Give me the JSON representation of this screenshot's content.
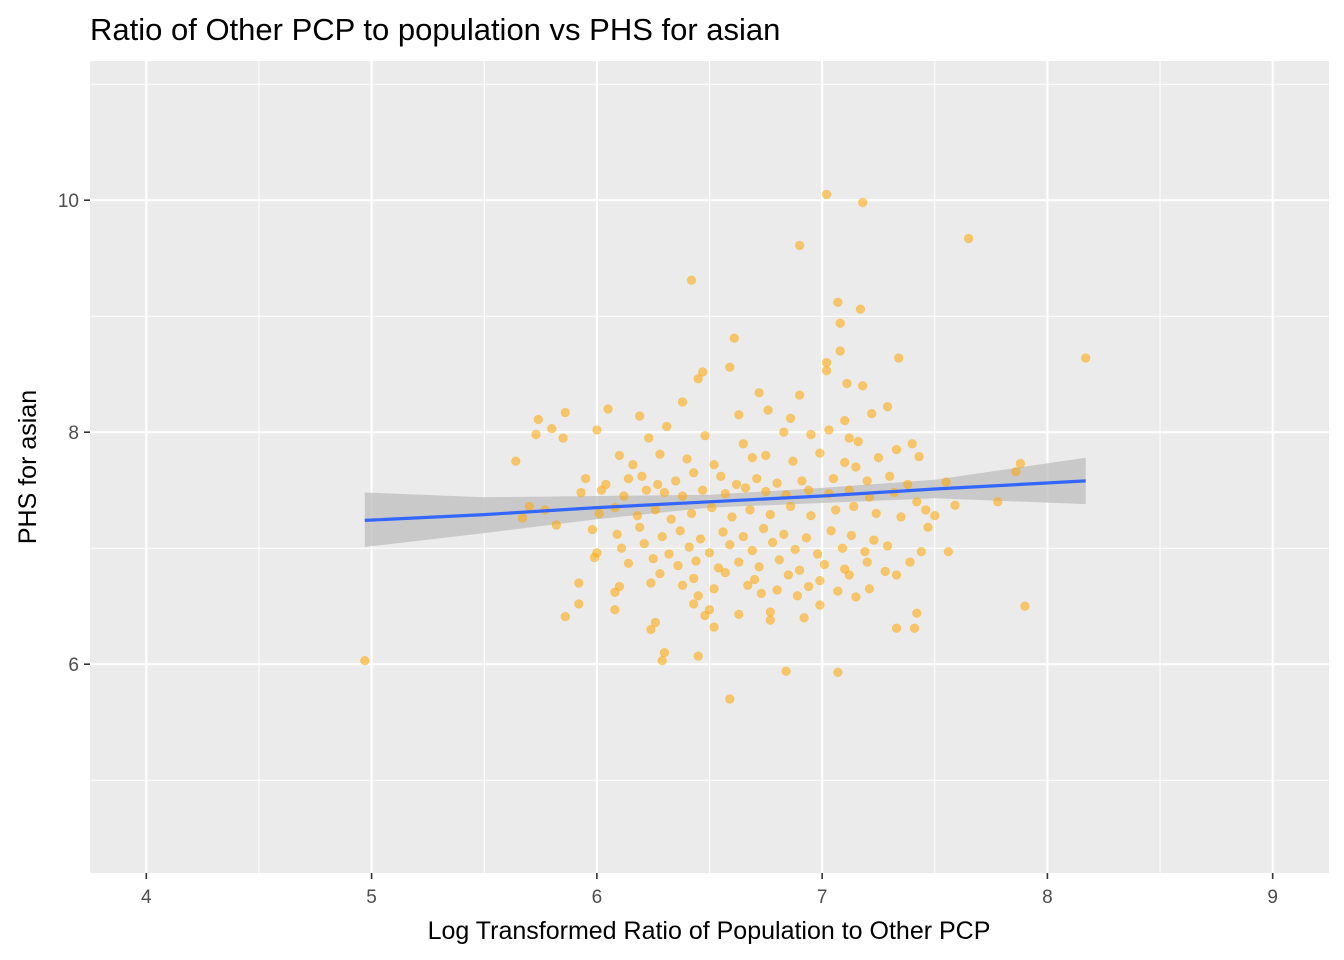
{
  "chart_data": {
    "type": "scatter",
    "title": "Ratio of Other PCP to population vs PHS for asian",
    "xlabel": "Log Transformed Ratio of Population to Other PCP",
    "ylabel": "PHS for asian",
    "xlim": [
      3.75,
      9.25
    ],
    "ylim": [
      4.2,
      11.2
    ],
    "x_ticks": [
      4,
      5,
      6,
      7,
      8,
      9
    ],
    "y_ticks": [
      6,
      8,
      10
    ],
    "grid": true,
    "point_color": "#FFA500",
    "line_color": "#3366FF",
    "band_color": "#BEBEBE",
    "panel_background": "#EBEBEB",
    "regression": {
      "x": [
        4.97,
        5.5,
        6.0,
        6.5,
        7.0,
        7.5,
        8.17
      ],
      "fit": [
        7.24,
        7.29,
        7.35,
        7.4,
        7.45,
        7.51,
        7.58
      ],
      "lower": [
        7.01,
        7.13,
        7.25,
        7.35,
        7.39,
        7.43,
        7.38
      ],
      "upper": [
        7.48,
        7.44,
        7.45,
        7.46,
        7.52,
        7.59,
        7.78
      ]
    },
    "points": [
      [
        4.97,
        6.03
      ],
      [
        7.02,
        10.05
      ],
      [
        7.18,
        9.98
      ],
      [
        7.65,
        9.67
      ],
      [
        6.9,
        9.61
      ],
      [
        6.42,
        9.31
      ],
      [
        7.07,
        9.12
      ],
      [
        7.17,
        9.06
      ],
      [
        7.08,
        8.94
      ],
      [
        6.61,
        8.81
      ],
      [
        7.08,
        8.7
      ],
      [
        8.17,
        8.64
      ],
      [
        7.34,
        8.64
      ],
      [
        7.02,
        8.6
      ],
      [
        7.02,
        8.53
      ],
      [
        6.59,
        8.56
      ],
      [
        6.47,
        8.52
      ],
      [
        6.45,
        8.46
      ],
      [
        6.72,
        8.34
      ],
      [
        6.9,
        8.32
      ],
      [
        7.11,
        8.42
      ],
      [
        7.18,
        8.4
      ],
      [
        7.29,
        8.22
      ],
      [
        6.38,
        8.26
      ],
      [
        6.05,
        8.2
      ],
      [
        6.19,
        8.14
      ],
      [
        5.86,
        8.17
      ],
      [
        5.74,
        8.11
      ],
      [
        6.76,
        8.19
      ],
      [
        6.63,
        8.15
      ],
      [
        6.86,
        8.12
      ],
      [
        7.22,
        8.16
      ],
      [
        7.1,
        8.1
      ],
      [
        6.31,
        8.05
      ],
      [
        5.8,
        8.03
      ],
      [
        5.73,
        7.98
      ],
      [
        5.85,
        7.95
      ],
      [
        6.0,
        8.02
      ],
      [
        6.23,
        7.95
      ],
      [
        6.48,
        7.97
      ],
      [
        7.03,
        8.02
      ],
      [
        6.95,
        7.98
      ],
      [
        6.65,
        7.9
      ],
      [
        6.83,
        8.0
      ],
      [
        7.12,
        7.95
      ],
      [
        7.16,
        7.92
      ],
      [
        7.4,
        7.9
      ],
      [
        7.33,
        7.85
      ],
      [
        5.64,
        7.75
      ],
      [
        6.1,
        7.8
      ],
      [
        6.16,
        7.72
      ],
      [
        6.28,
        7.81
      ],
      [
        6.4,
        7.77
      ],
      [
        6.52,
        7.72
      ],
      [
        6.69,
        7.78
      ],
      [
        6.75,
        7.8
      ],
      [
        6.87,
        7.75
      ],
      [
        6.99,
        7.82
      ],
      [
        7.1,
        7.74
      ],
      [
        7.15,
        7.7
      ],
      [
        7.25,
        7.78
      ],
      [
        7.43,
        7.79
      ],
      [
        7.88,
        7.73
      ],
      [
        7.86,
        7.66
      ],
      [
        7.55,
        7.57
      ],
      [
        7.78,
        7.4
      ],
      [
        5.95,
        7.6
      ],
      [
        6.04,
        7.55
      ],
      [
        6.14,
        7.6
      ],
      [
        6.2,
        7.62
      ],
      [
        6.27,
        7.55
      ],
      [
        6.35,
        7.58
      ],
      [
        6.43,
        7.65
      ],
      [
        6.55,
        7.62
      ],
      [
        6.62,
        7.55
      ],
      [
        6.71,
        7.6
      ],
      [
        6.8,
        7.56
      ],
      [
        6.91,
        7.58
      ],
      [
        7.05,
        7.6
      ],
      [
        7.2,
        7.58
      ],
      [
        7.3,
        7.62
      ],
      [
        7.38,
        7.55
      ],
      [
        5.93,
        7.48
      ],
      [
        6.02,
        7.5
      ],
      [
        6.12,
        7.45
      ],
      [
        6.22,
        7.5
      ],
      [
        6.3,
        7.48
      ],
      [
        6.38,
        7.45
      ],
      [
        6.47,
        7.5
      ],
      [
        6.57,
        7.47
      ],
      [
        6.66,
        7.52
      ],
      [
        6.75,
        7.49
      ],
      [
        6.84,
        7.46
      ],
      [
        6.94,
        7.5
      ],
      [
        7.03,
        7.47
      ],
      [
        7.12,
        7.5
      ],
      [
        7.21,
        7.44
      ],
      [
        7.32,
        7.48
      ],
      [
        7.42,
        7.4
      ],
      [
        7.46,
        7.33
      ],
      [
        7.59,
        7.37
      ],
      [
        5.7,
        7.36
      ],
      [
        5.77,
        7.33
      ],
      [
        5.67,
        7.26
      ],
      [
        5.82,
        7.2
      ],
      [
        6.01,
        7.3
      ],
      [
        6.08,
        7.35
      ],
      [
        6.18,
        7.28
      ],
      [
        6.26,
        7.33
      ],
      [
        6.33,
        7.25
      ],
      [
        6.42,
        7.3
      ],
      [
        6.51,
        7.35
      ],
      [
        6.6,
        7.27
      ],
      [
        6.68,
        7.33
      ],
      [
        6.77,
        7.29
      ],
      [
        6.86,
        7.36
      ],
      [
        6.95,
        7.28
      ],
      [
        7.06,
        7.33
      ],
      [
        7.14,
        7.36
      ],
      [
        7.24,
        7.3
      ],
      [
        7.35,
        7.27
      ],
      [
        7.5,
        7.28
      ],
      [
        7.47,
        7.18
      ],
      [
        5.98,
        7.16
      ],
      [
        6.09,
        7.12
      ],
      [
        6.19,
        7.18
      ],
      [
        6.29,
        7.1
      ],
      [
        6.37,
        7.15
      ],
      [
        6.46,
        7.08
      ],
      [
        6.56,
        7.14
      ],
      [
        6.65,
        7.1
      ],
      [
        6.74,
        7.17
      ],
      [
        6.83,
        7.12
      ],
      [
        6.93,
        7.09
      ],
      [
        7.04,
        7.15
      ],
      [
        7.13,
        7.11
      ],
      [
        7.23,
        7.07
      ],
      [
        6.0,
        6.96
      ],
      [
        6.11,
        7.0
      ],
      [
        6.21,
        7.04
      ],
      [
        6.32,
        6.95
      ],
      [
        6.41,
        7.01
      ],
      [
        6.5,
        6.96
      ],
      [
        6.59,
        7.03
      ],
      [
        6.69,
        6.98
      ],
      [
        6.78,
        7.05
      ],
      [
        6.88,
        6.99
      ],
      [
        6.98,
        6.95
      ],
      [
        7.09,
        7.0
      ],
      [
        7.19,
        6.97
      ],
      [
        7.29,
        7.02
      ],
      [
        7.44,
        6.97
      ],
      [
        7.56,
        6.97
      ],
      [
        5.99,
        6.92
      ],
      [
        6.14,
        6.87
      ],
      [
        6.25,
        6.91
      ],
      [
        6.36,
        6.85
      ],
      [
        6.44,
        6.89
      ],
      [
        6.54,
        6.83
      ],
      [
        6.63,
        6.88
      ],
      [
        6.72,
        6.84
      ],
      [
        6.81,
        6.9
      ],
      [
        6.9,
        6.81
      ],
      [
        7.01,
        6.86
      ],
      [
        7.1,
        6.82
      ],
      [
        7.2,
        6.88
      ],
      [
        7.39,
        6.88
      ],
      [
        6.28,
        6.78
      ],
      [
        6.43,
        6.74
      ],
      [
        6.57,
        6.79
      ],
      [
        6.7,
        6.73
      ],
      [
        6.85,
        6.77
      ],
      [
        6.99,
        6.72
      ],
      [
        7.12,
        6.77
      ],
      [
        7.28,
        6.8
      ],
      [
        7.33,
        6.77
      ],
      [
        5.92,
        6.7
      ],
      [
        6.1,
        6.67
      ],
      [
        6.24,
        6.7
      ],
      [
        6.38,
        6.68
      ],
      [
        6.52,
        6.65
      ],
      [
        6.67,
        6.68
      ],
      [
        6.8,
        6.64
      ],
      [
        6.94,
        6.67
      ],
      [
        7.07,
        6.63
      ],
      [
        7.21,
        6.65
      ],
      [
        6.08,
        6.62
      ],
      [
        6.45,
        6.59
      ],
      [
        6.73,
        6.61
      ],
      [
        6.89,
        6.59
      ],
      [
        7.15,
        6.58
      ],
      [
        5.92,
        6.52
      ],
      [
        6.08,
        6.47
      ],
      [
        6.43,
        6.52
      ],
      [
        6.5,
        6.47
      ],
      [
        6.77,
        6.45
      ],
      [
        6.99,
        6.51
      ],
      [
        7.42,
        6.44
      ],
      [
        7.9,
        6.5
      ],
      [
        5.86,
        6.41
      ],
      [
        6.26,
        6.36
      ],
      [
        6.48,
        6.42
      ],
      [
        6.63,
        6.43
      ],
      [
        6.77,
        6.38
      ],
      [
        6.92,
        6.4
      ],
      [
        7.33,
        6.31
      ],
      [
        7.41,
        6.31
      ],
      [
        6.24,
        6.3
      ],
      [
        6.52,
        6.32
      ],
      [
        6.3,
        6.1
      ],
      [
        6.29,
        6.03
      ],
      [
        6.45,
        6.07
      ],
      [
        6.84,
        5.94
      ],
      [
        7.07,
        5.93
      ],
      [
        6.59,
        5.7
      ]
    ]
  }
}
